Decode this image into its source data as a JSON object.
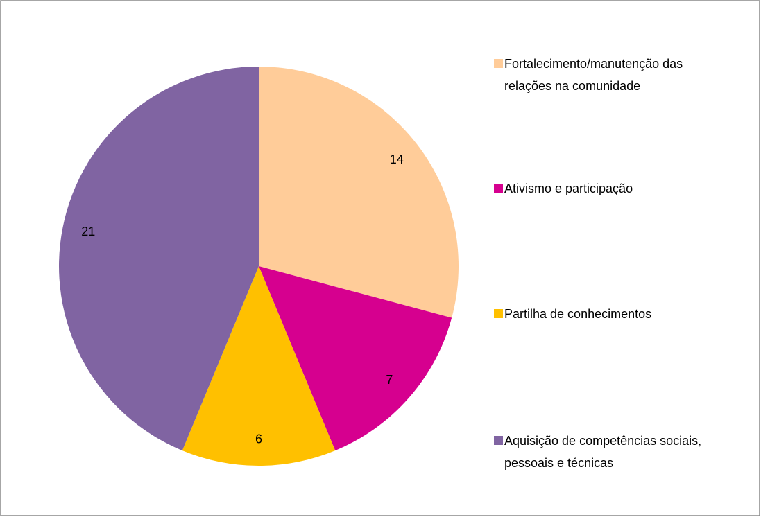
{
  "chart_data": {
    "type": "pie",
    "categories": [
      "Fortalecimento/manutenção das relações na comunidade",
      "Ativismo e participação",
      "Partilha de conhecimentos",
      "Aquisição de competências sociais, pessoais e técnicas"
    ],
    "values": [
      14,
      7,
      6,
      21
    ],
    "colors": [
      "#FFCC99",
      "#D6008F",
      "#FFC000",
      "#8064A2"
    ],
    "legend": "right"
  }
}
